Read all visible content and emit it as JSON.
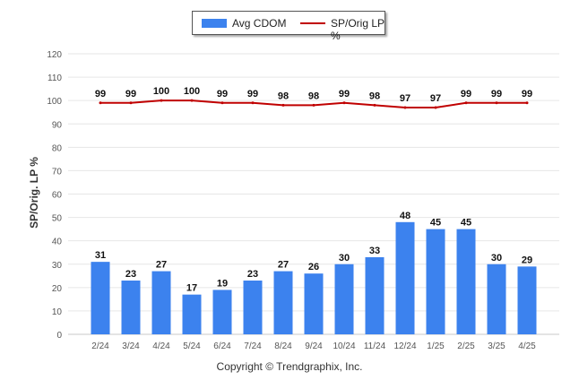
{
  "legend": {
    "bar_label": "Avg CDOM",
    "line_label": "SP/Orig LP %"
  },
  "copyright": "Copyright © Trendgraphix, Inc.",
  "colors": {
    "bar": "#3c82ee",
    "line": "#c00000",
    "grid": "#e6e6e6",
    "axis_text": "#555555",
    "label_text": "#111111"
  },
  "chart_data": {
    "type": "bar",
    "categories": [
      "2/24",
      "3/24",
      "4/24",
      "5/24",
      "6/24",
      "7/24",
      "8/24",
      "9/24",
      "10/24",
      "11/24",
      "12/24",
      "1/25",
      "2/25",
      "3/25",
      "4/25"
    ],
    "series": [
      {
        "name": "Avg CDOM",
        "type": "bar",
        "values": [
          31,
          23,
          27,
          17,
          19,
          23,
          27,
          26,
          30,
          33,
          48,
          45,
          45,
          30,
          29
        ]
      },
      {
        "name": "SP/Orig LP %",
        "type": "line",
        "values": [
          99,
          99,
          100,
          100,
          99,
          99,
          98,
          98,
          99,
          98,
          97,
          97,
          99,
          99,
          99
        ]
      }
    ],
    "ylabel": "SP/Orig. LP %",
    "ylim": [
      0,
      120
    ],
    "yticks": [
      0,
      10,
      20,
      30,
      40,
      50,
      60,
      70,
      80,
      90,
      100,
      110,
      120
    ],
    "grid": true,
    "legend_position": "top-center"
  }
}
